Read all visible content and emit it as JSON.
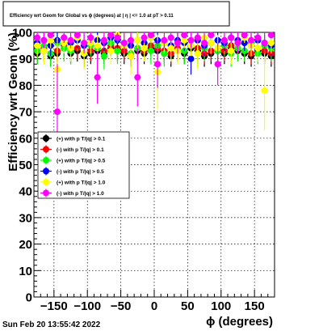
{
  "chart_data": {
    "type": "scatter",
    "title": "Efficiency wrt Geom for Global vs ϕ (degrees) at | η | <= 1.0 at pT > 0.11",
    "xlabel": "ϕ (degrees)",
    "ylabel": "Efficiency wrt Geom (%)",
    "xlim": [
      -180,
      180
    ],
    "ylim": [
      0,
      100
    ],
    "xticks": [
      -150,
      -100,
      -50,
      0,
      50,
      100,
      150
    ],
    "xtick_labels": [
      "−150",
      "−100",
      "−50",
      "0",
      "50",
      "100",
      "150"
    ],
    "yticks": [
      0,
      10,
      20,
      30,
      40,
      50,
      60,
      70,
      80,
      90,
      100
    ],
    "ytick_labels": [
      "0",
      "10",
      "20",
      "30",
      "40",
      "50",
      "60",
      "70",
      "80",
      "90",
      "100"
    ],
    "grid": true,
    "legend_position": "middle-left",
    "x": [
      -175,
      -165,
      -155,
      -145,
      -135,
      -125,
      -115,
      -105,
      -95,
      -85,
      -75,
      -65,
      -55,
      -45,
      -35,
      -25,
      -15,
      -5,
      5,
      15,
      25,
      35,
      45,
      55,
      65,
      75,
      85,
      95,
      105,
      115,
      125,
      135,
      145,
      155,
      165,
      175
    ],
    "series": [
      {
        "name": "(+) with p T/|q| > 0.1",
        "color": "#000000",
        "values": [
          92,
          93,
          91,
          92,
          94,
          92,
          93,
          91,
          92,
          93,
          92,
          94,
          93,
          92,
          91,
          93,
          92,
          94,
          93,
          92,
          91,
          93,
          92,
          94,
          93,
          91,
          92,
          93,
          92,
          94,
          93,
          92,
          91,
          93,
          92,
          91
        ],
        "errors": [
          4,
          4,
          4,
          4,
          3,
          4,
          4,
          4,
          4,
          4,
          4,
          3,
          4,
          4,
          4,
          4,
          4,
          3,
          4,
          4,
          4,
          4,
          4,
          3,
          4,
          4,
          4,
          4,
          4,
          3,
          4,
          4,
          4,
          4,
          4,
          4
        ]
      },
      {
        "name": "(-) with p T/|q| > 0.1",
        "color": "#ff0000",
        "values": [
          93,
          94,
          92,
          93,
          95,
          93,
          94,
          92,
          93,
          94,
          93,
          95,
          94,
          93,
          92,
          94,
          93,
          95,
          94,
          93,
          92,
          94,
          93,
          95,
          94,
          92,
          93,
          94,
          93,
          95,
          94,
          93,
          92,
          94,
          93,
          92
        ],
        "errors": [
          4,
          4,
          4,
          4,
          3,
          4,
          4,
          4,
          4,
          4,
          4,
          3,
          4,
          4,
          4,
          4,
          4,
          3,
          4,
          4,
          4,
          4,
          4,
          3,
          4,
          4,
          4,
          4,
          4,
          3,
          4,
          4,
          4,
          4,
          4,
          4
        ]
      },
      {
        "name": "(+) with p T/|q| > 0.5",
        "color": "#00ff00",
        "values": [
          93,
          95,
          92,
          96,
          94,
          93,
          97,
          92,
          95,
          94,
          91,
          96,
          93,
          95,
          92,
          94,
          96,
          93,
          95,
          92,
          94,
          96,
          93,
          95,
          92,
          94,
          96,
          93,
          95,
          92,
          94,
          93,
          96,
          92,
          95,
          94
        ],
        "errors": [
          5,
          4,
          5,
          4,
          5,
          5,
          4,
          5,
          4,
          5,
          5,
          4,
          5,
          4,
          5,
          5,
          4,
          5,
          4,
          5,
          5,
          4,
          5,
          4,
          5,
          5,
          4,
          5,
          4,
          5,
          5,
          4,
          5,
          4,
          5,
          5
        ]
      },
      {
        "name": "(-) with p T/|q| > 0.5",
        "color": "#0000ff",
        "values": [
          96,
          97,
          95,
          97,
          98,
          96,
          97,
          95,
          96,
          97,
          96,
          98,
          97,
          96,
          95,
          97,
          96,
          98,
          97,
          96,
          95,
          97,
          96,
          90,
          97,
          95,
          96,
          97,
          96,
          98,
          97,
          96,
          95,
          97,
          96,
          95
        ],
        "errors": [
          3,
          3,
          4,
          3,
          2,
          3,
          3,
          4,
          3,
          3,
          3,
          2,
          3,
          3,
          4,
          3,
          3,
          2,
          3,
          3,
          4,
          3,
          3,
          6,
          3,
          4,
          3,
          3,
          3,
          2,
          3,
          3,
          4,
          3,
          3,
          4
        ]
      },
      {
        "name": "(+) with p T/|q| > 1.0",
        "color": "#ffff00",
        "values": [
          95,
          93,
          97,
          86,
          96,
          94,
          98,
          92,
          96,
          95,
          97,
          93,
          99,
          95,
          91,
          97,
          94,
          98,
          85,
          96,
          94,
          93,
          97,
          95,
          92,
          98,
          96,
          94,
          97,
          93,
          96,
          98,
          95,
          94,
          78,
          96
        ],
        "errors": [
          4,
          5,
          3,
          12,
          4,
          5,
          3,
          6,
          4,
          4,
          3,
          5,
          2,
          4,
          7,
          3,
          5,
          2,
          14,
          4,
          5,
          5,
          3,
          4,
          6,
          2,
          4,
          5,
          3,
          5,
          4,
          2,
          4,
          5,
          15,
          4
        ]
      },
      {
        "name": "(-) with p T/|q| > 1.0",
        "color": "#ff00ff",
        "values": [
          98,
          97,
          99,
          70,
          98,
          97,
          99,
          96,
          98,
          83,
          97,
          99,
          98,
          96,
          97,
          83,
          98,
          99,
          88,
          97,
          98,
          96,
          99,
          97,
          98,
          96,
          99,
          88,
          97,
          98,
          96,
          99,
          97,
          98,
          96,
          99
        ],
        "errors": [
          2,
          3,
          1,
          18,
          2,
          3,
          1,
          4,
          2,
          10,
          3,
          1,
          2,
          4,
          3,
          11,
          2,
          1,
          9,
          3,
          2,
          4,
          1,
          3,
          2,
          4,
          1,
          8,
          3,
          2,
          4,
          1,
          3,
          2,
          4,
          1
        ]
      }
    ]
  },
  "footer": {
    "timestamp": "Sun Feb 20 13:55:42 2022"
  }
}
